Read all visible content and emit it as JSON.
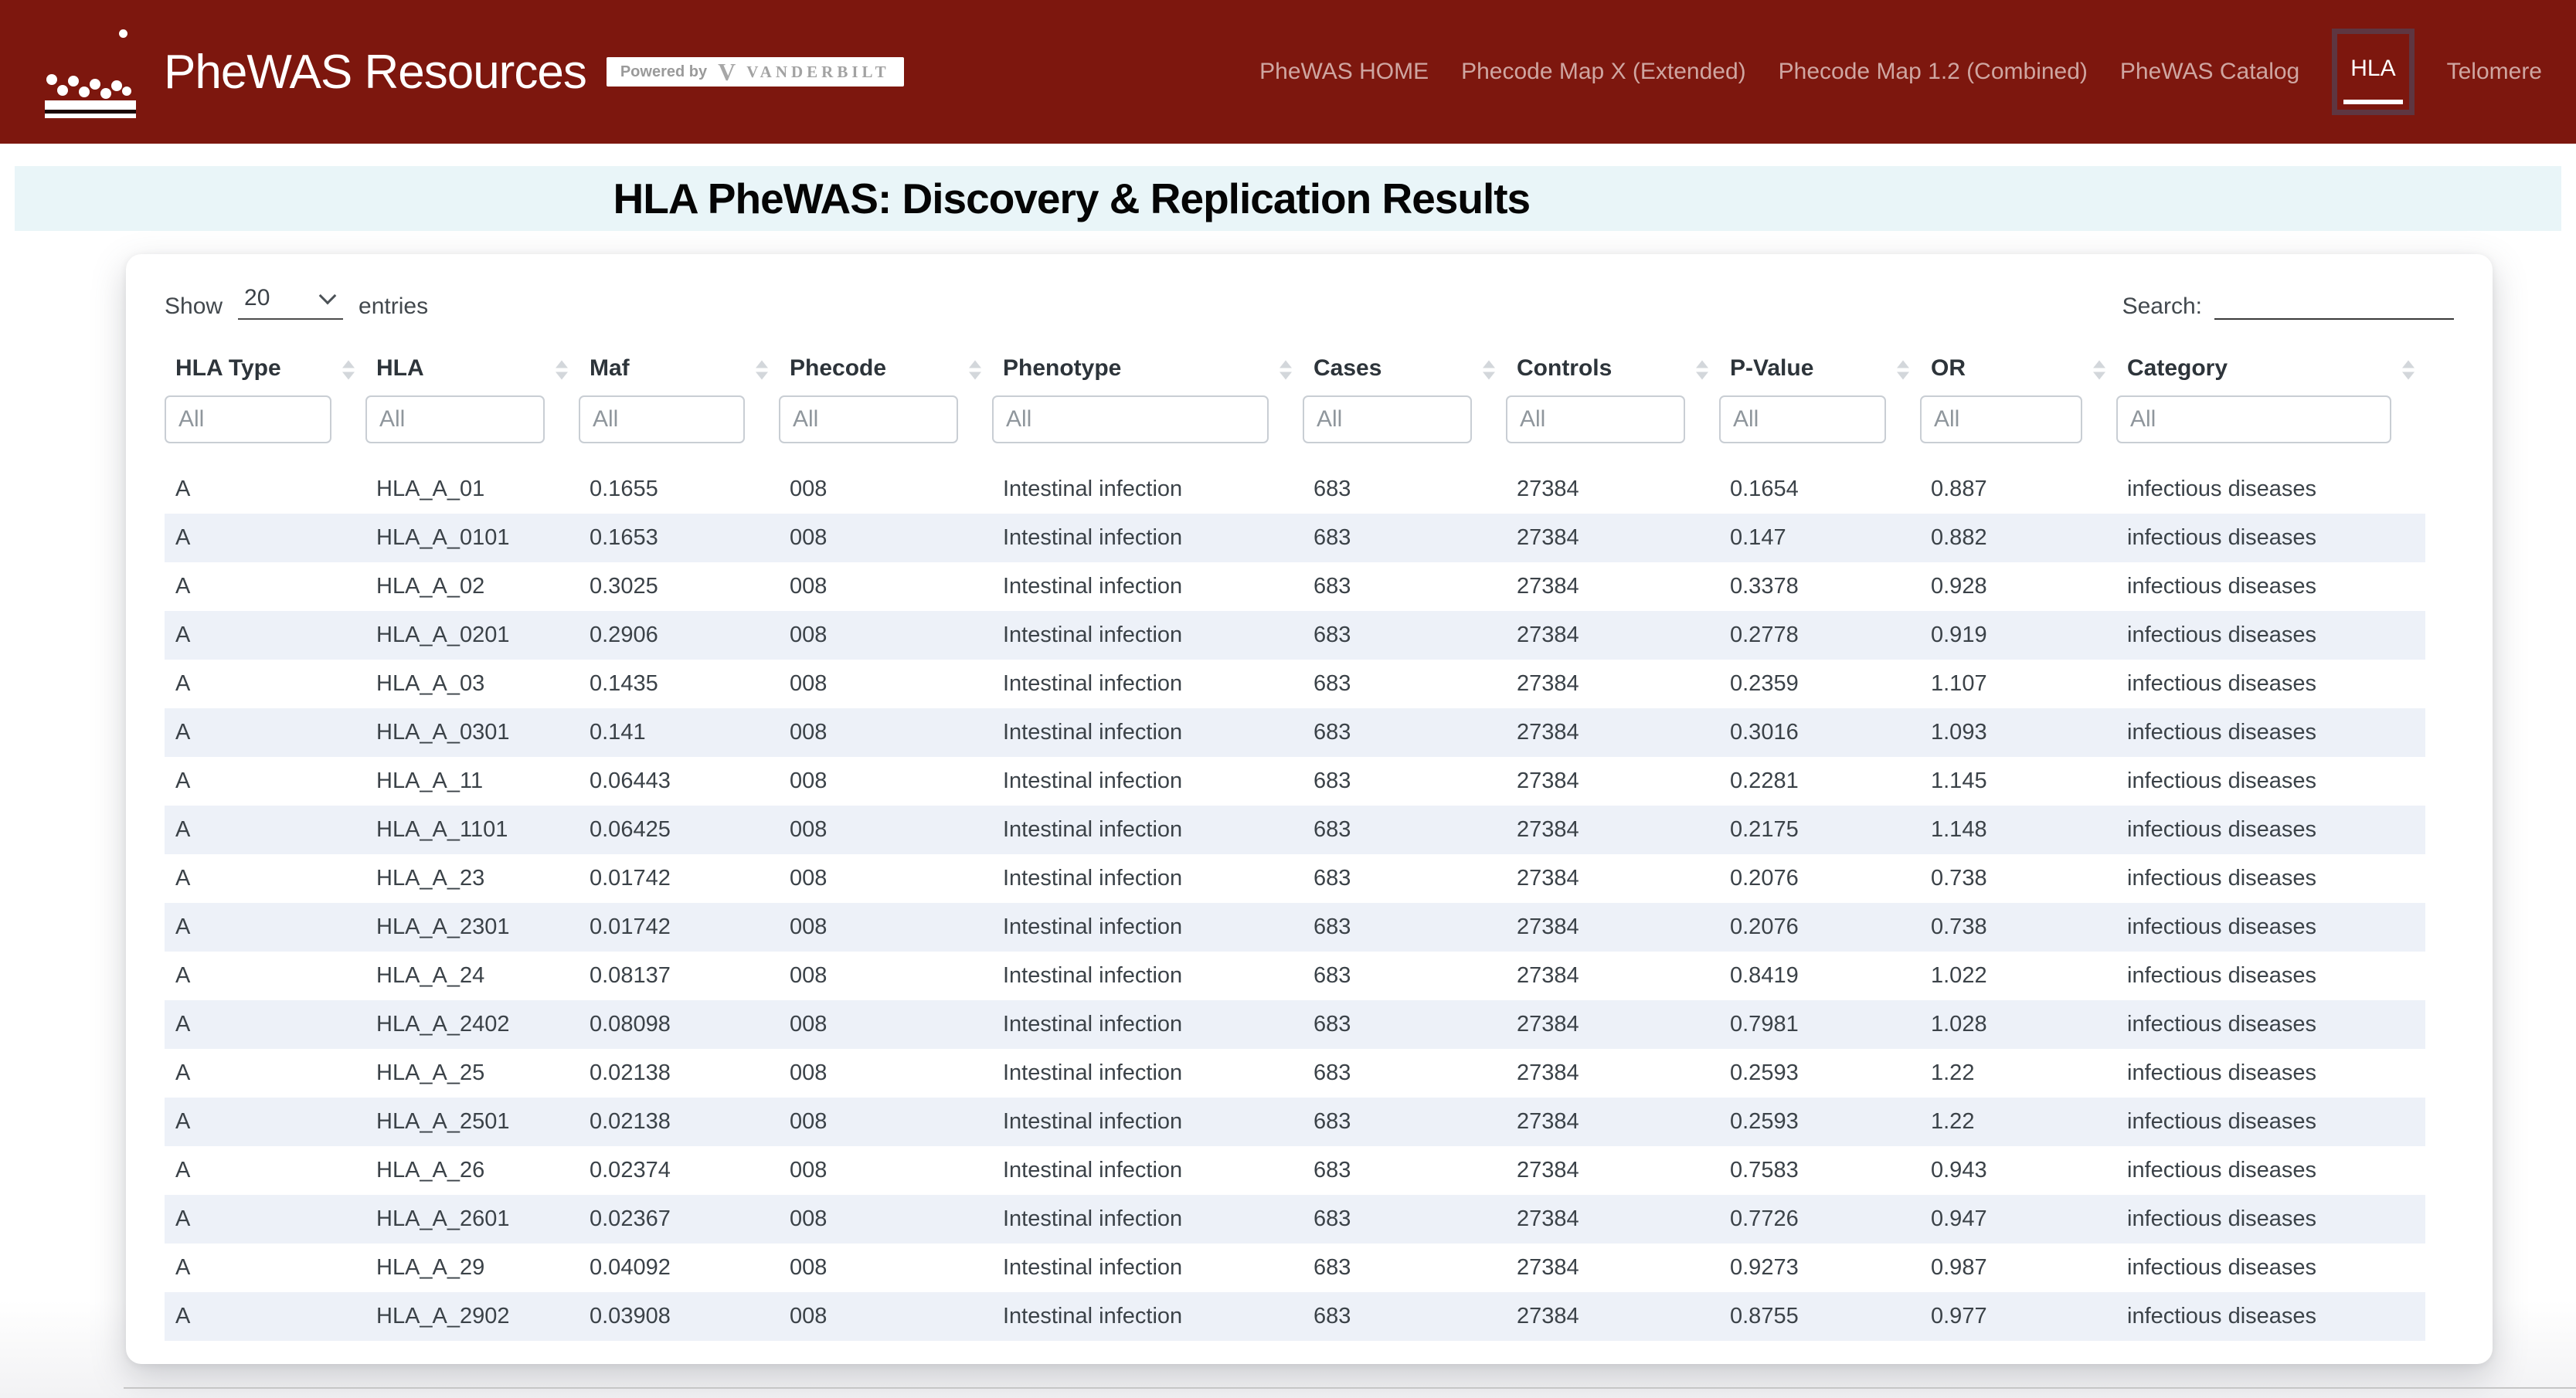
{
  "header": {
    "brand": "PheWAS Resources",
    "powered_by_label": "Powered by",
    "vanderbilt_label": "VANDERBILT",
    "nav": [
      {
        "label": "PheWAS HOME",
        "active": false
      },
      {
        "label": "Phecode Map X (Extended)",
        "active": false
      },
      {
        "label": "Phecode Map 1.2 (Combined)",
        "active": false
      },
      {
        "label": "PheWAS Catalog",
        "active": false
      },
      {
        "label": "HLA",
        "active": true
      },
      {
        "label": "Telomere",
        "active": false
      }
    ]
  },
  "banner": {
    "title": "HLA PheWAS: Discovery & Replication Results"
  },
  "controls": {
    "show_label": "Show",
    "page_length": "20",
    "entries_label": "entries",
    "search_label": "Search:",
    "search_value": ""
  },
  "table": {
    "columns": [
      "HLA Type",
      "HLA",
      "Maf",
      "Phecode",
      "Phenotype",
      "Cases",
      "Controls",
      "P-Value",
      "OR",
      "Category"
    ],
    "filter_placeholder": "All",
    "rows": [
      [
        "A",
        "HLA_A_01",
        "0.1655",
        "008",
        "Intestinal infection",
        "683",
        "27384",
        "0.1654",
        "0.887",
        "infectious diseases"
      ],
      [
        "A",
        "HLA_A_0101",
        "0.1653",
        "008",
        "Intestinal infection",
        "683",
        "27384",
        "0.147",
        "0.882",
        "infectious diseases"
      ],
      [
        "A",
        "HLA_A_02",
        "0.3025",
        "008",
        "Intestinal infection",
        "683",
        "27384",
        "0.3378",
        "0.928",
        "infectious diseases"
      ],
      [
        "A",
        "HLA_A_0201",
        "0.2906",
        "008",
        "Intestinal infection",
        "683",
        "27384",
        "0.2778",
        "0.919",
        "infectious diseases"
      ],
      [
        "A",
        "HLA_A_03",
        "0.1435",
        "008",
        "Intestinal infection",
        "683",
        "27384",
        "0.2359",
        "1.107",
        "infectious diseases"
      ],
      [
        "A",
        "HLA_A_0301",
        "0.141",
        "008",
        "Intestinal infection",
        "683",
        "27384",
        "0.3016",
        "1.093",
        "infectious diseases"
      ],
      [
        "A",
        "HLA_A_11",
        "0.06443",
        "008",
        "Intestinal infection",
        "683",
        "27384",
        "0.2281",
        "1.145",
        "infectious diseases"
      ],
      [
        "A",
        "HLA_A_1101",
        "0.06425",
        "008",
        "Intestinal infection",
        "683",
        "27384",
        "0.2175",
        "1.148",
        "infectious diseases"
      ],
      [
        "A",
        "HLA_A_23",
        "0.01742",
        "008",
        "Intestinal infection",
        "683",
        "27384",
        "0.2076",
        "0.738",
        "infectious diseases"
      ],
      [
        "A",
        "HLA_A_2301",
        "0.01742",
        "008",
        "Intestinal infection",
        "683",
        "27384",
        "0.2076",
        "0.738",
        "infectious diseases"
      ],
      [
        "A",
        "HLA_A_24",
        "0.08137",
        "008",
        "Intestinal infection",
        "683",
        "27384",
        "0.8419",
        "1.022",
        "infectious diseases"
      ],
      [
        "A",
        "HLA_A_2402",
        "0.08098",
        "008",
        "Intestinal infection",
        "683",
        "27384",
        "0.7981",
        "1.028",
        "infectious diseases"
      ],
      [
        "A",
        "HLA_A_25",
        "0.02138",
        "008",
        "Intestinal infection",
        "683",
        "27384",
        "0.2593",
        "1.22",
        "infectious diseases"
      ],
      [
        "A",
        "HLA_A_2501",
        "0.02138",
        "008",
        "Intestinal infection",
        "683",
        "27384",
        "0.2593",
        "1.22",
        "infectious diseases"
      ],
      [
        "A",
        "HLA_A_26",
        "0.02374",
        "008",
        "Intestinal infection",
        "683",
        "27384",
        "0.7583",
        "0.943",
        "infectious diseases"
      ],
      [
        "A",
        "HLA_A_2601",
        "0.02367",
        "008",
        "Intestinal infection",
        "683",
        "27384",
        "0.7726",
        "0.947",
        "infectious diseases"
      ],
      [
        "A",
        "HLA_A_29",
        "0.04092",
        "008",
        "Intestinal infection",
        "683",
        "27384",
        "0.9273",
        "0.987",
        "infectious diseases"
      ],
      [
        "A",
        "HLA_A_2902",
        "0.03908",
        "008",
        "Intestinal infection",
        "683",
        "27384",
        "0.8755",
        "0.977",
        "infectious diseases"
      ]
    ]
  },
  "colors": {
    "header_bg": "#7d170e",
    "nav_link": "#cfa6a1",
    "nav_active": "#ffffff",
    "active_tab_border": "#5e3641",
    "banner_bg": "#e9f5f8",
    "row_stripe": "#edf1f8",
    "badge_bg": "#ffffff",
    "badge_text": "#9a9a9a"
  }
}
